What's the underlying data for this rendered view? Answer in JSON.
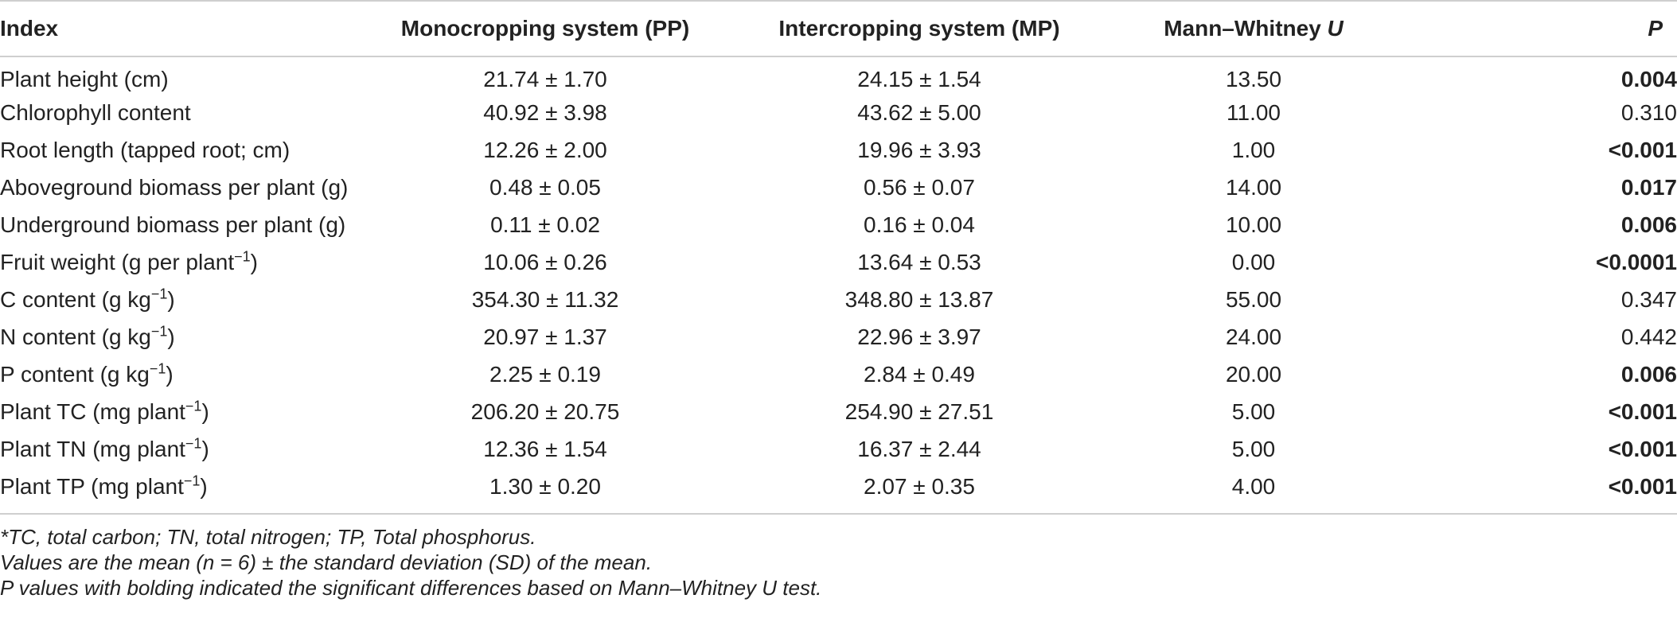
{
  "table": {
    "headers": {
      "index": "Index",
      "pp": "Monocropping system (PP)",
      "mp": "Intercropping system (MP)",
      "u_prefix": "Mann–Whitney ",
      "u_italic": "U",
      "p": "P"
    },
    "rows": [
      {
        "label": "Plant height (cm)",
        "sup": "",
        "label_after": "",
        "pp": "21.74 ± 1.70",
        "mp": "24.15 ± 1.54",
        "u": "13.50",
        "p": "0.004",
        "p_bold": true
      },
      {
        "label": "Chlorophyll content",
        "sup": "",
        "label_after": "",
        "pp": "40.92 ± 3.98",
        "mp": "43.62 ± 5.00",
        "u": "11.00",
        "p": "0.310",
        "p_bold": false
      },
      {
        "label": "Root length (tapped root; cm)",
        "sup": "",
        "label_after": "",
        "pp": "12.26 ± 2.00",
        "mp": "19.96 ± 3.93",
        "u": "1.00",
        "p": "<0.001",
        "p_bold": true
      },
      {
        "label": "Aboveground biomass per plant (g)",
        "sup": "",
        "label_after": "",
        "pp": "0.48 ± 0.05",
        "mp": "0.56 ± 0.07",
        "u": "14.00",
        "p": "0.017",
        "p_bold": true
      },
      {
        "label": "Underground biomass per plant (g)",
        "sup": "",
        "label_after": "",
        "pp": "0.11 ± 0.02",
        "mp": "0.16 ± 0.04",
        "u": "10.00",
        "p": "0.006",
        "p_bold": true
      },
      {
        "label": "Fruit weight (g per plant",
        "sup": "−1",
        "label_after": ")",
        "pp": "10.06 ± 0.26",
        "mp": "13.64 ± 0.53",
        "u": "0.00",
        "p": "<0.0001",
        "p_bold": true
      },
      {
        "label": "C content (g kg",
        "sup": "−1",
        "label_after": ")",
        "pp": "354.30 ± 11.32",
        "mp": "348.80 ± 13.87",
        "u": "55.00",
        "p": "0.347",
        "p_bold": false
      },
      {
        "label": "N content (g kg",
        "sup": "−1",
        "label_after": ")",
        "pp": "20.97 ± 1.37",
        "mp": "22.96 ± 3.97",
        "u": "24.00",
        "p": "0.442",
        "p_bold": false
      },
      {
        "label": "P content (g kg",
        "sup": "−1",
        "label_after": ")",
        "pp": "2.25 ± 0.19",
        "mp": "2.84 ± 0.49",
        "u": "20.00",
        "p": "0.006",
        "p_bold": true
      },
      {
        "label": "Plant TC (mg plant",
        "sup": "−1",
        "label_after": ")",
        "pp": "206.20 ± 20.75",
        "mp": "254.90 ± 27.51",
        "u": "5.00",
        "p": "<0.001",
        "p_bold": true
      },
      {
        "label": "Plant TN (mg plant",
        "sup": "−1",
        "label_after": ")",
        "pp": "12.36 ± 1.54",
        "mp": "16.37 ± 2.44",
        "u": "5.00",
        "p": "<0.001",
        "p_bold": true
      },
      {
        "label": "Plant TP (mg plant",
        "sup": "−1",
        "label_after": ")",
        "pp": "1.30 ± 0.20",
        "mp": "2.07 ± 0.35",
        "u": "4.00",
        "p": "<0.001",
        "p_bold": true
      }
    ]
  },
  "notes": [
    "*TC, total carbon; TN, total nitrogen; TP, Total phosphorus.",
    "Values are the mean (n = 6) ± the standard deviation (SD) of the mean.",
    "P values with bolding indicated the significant differences based on Mann–Whitney U test."
  ]
}
